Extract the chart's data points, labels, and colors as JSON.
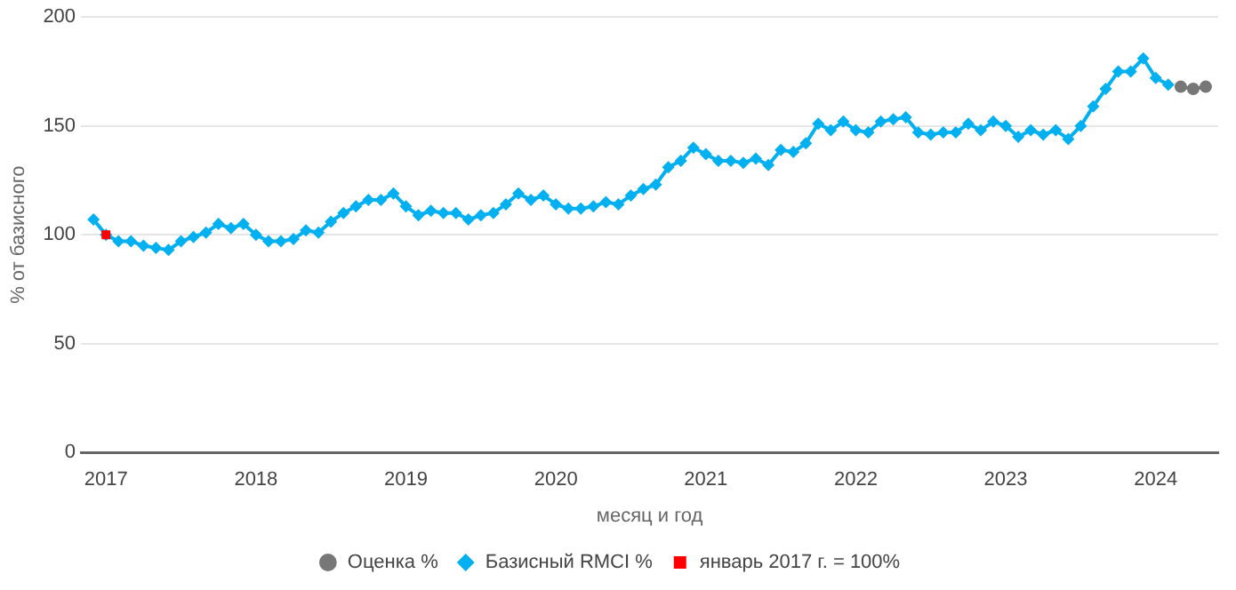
{
  "chart_data": {
    "type": "line",
    "xlabel": "месяц и год",
    "ylabel": "% от базисного",
    "xlim": [
      "2016-11",
      "2024-06"
    ],
    "xticks": [
      "2017",
      "2018",
      "2019",
      "2020",
      "2021",
      "2022",
      "2023",
      "2024"
    ],
    "ylim": [
      0,
      200
    ],
    "yticks": [
      0,
      50,
      100,
      150,
      200
    ],
    "grid": "y",
    "legend": "bottom",
    "series": [
      {
        "name": "Оценка %",
        "color": "#777777",
        "marker": "circle",
        "x": [
          "2024-03",
          "2024-04",
          "2024-05"
        ],
        "values": [
          168,
          167,
          168
        ]
      },
      {
        "name": "Базисный RMCI %",
        "color": "#00b0f0",
        "marker": "diamond",
        "x": [
          "2016-12",
          "2017-01",
          "2017-02",
          "2017-03",
          "2017-04",
          "2017-05",
          "2017-06",
          "2017-07",
          "2017-08",
          "2017-09",
          "2017-10",
          "2017-11",
          "2017-12",
          "2018-01",
          "2018-02",
          "2018-03",
          "2018-04",
          "2018-05",
          "2018-06",
          "2018-07",
          "2018-08",
          "2018-09",
          "2018-10",
          "2018-11",
          "2018-12",
          "2019-01",
          "2019-02",
          "2019-03",
          "2019-04",
          "2019-05",
          "2019-06",
          "2019-07",
          "2019-08",
          "2019-09",
          "2019-10",
          "2019-11",
          "2019-12",
          "2020-01",
          "2020-02",
          "2020-03",
          "2020-04",
          "2020-05",
          "2020-06",
          "2020-07",
          "2020-08",
          "2020-09",
          "2020-10",
          "2020-11",
          "2020-12",
          "2021-01",
          "2021-02",
          "2021-03",
          "2021-04",
          "2021-05",
          "2021-06",
          "2021-07",
          "2021-08",
          "2021-09",
          "2021-10",
          "2021-11",
          "2021-12",
          "2022-01",
          "2022-02",
          "2022-03",
          "2022-04",
          "2022-05",
          "2022-06",
          "2022-07",
          "2022-08",
          "2022-09",
          "2022-10",
          "2022-11",
          "2022-12",
          "2023-01",
          "2023-02",
          "2023-03",
          "2023-04",
          "2023-05",
          "2023-06",
          "2023-07",
          "2023-08",
          "2023-09",
          "2023-10",
          "2023-11",
          "2023-12",
          "2024-01",
          "2024-02"
        ],
        "values": [
          107,
          100,
          97,
          97,
          95,
          94,
          93,
          97,
          99,
          101,
          105,
          103,
          105,
          100,
          97,
          97,
          98,
          102,
          101,
          106,
          110,
          113,
          116,
          116,
          119,
          113,
          109,
          111,
          110,
          110,
          107,
          109,
          110,
          114,
          119,
          116,
          118,
          114,
          112,
          112,
          113,
          115,
          114,
          118,
          121,
          123,
          131,
          134,
          140,
          137,
          134,
          134,
          133,
          135,
          132,
          139,
          138,
          142,
          151,
          148,
          152,
          148,
          147,
          152,
          153,
          154,
          147,
          146,
          147,
          147,
          151,
          148,
          152,
          150,
          145,
          148,
          146,
          148,
          144,
          150,
          159,
          167,
          175,
          175,
          181,
          172,
          169
        ]
      },
      {
        "name": "январь 2017 г. = 100%",
        "color": "#ff0000",
        "marker": "square",
        "x": [
          "2017-01"
        ],
        "values": [
          100
        ]
      }
    ]
  }
}
